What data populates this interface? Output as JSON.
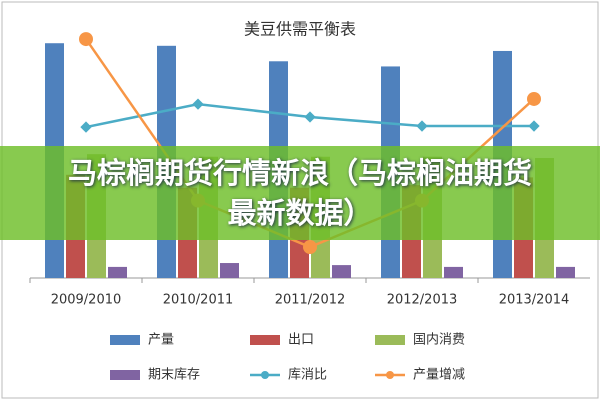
{
  "chart_data": {
    "type": "bar",
    "title": "美豆供需平衡表",
    "categories": [
      "2009/2010",
      "2010/2011",
      "2011/2012",
      "2012/2013",
      "2013/2014"
    ],
    "ylim": [
      0,
      10
    ],
    "series": [
      {
        "name": "产量",
        "color": "#4f81bd",
        "type": "bar",
        "values": [
          9.1,
          9.0,
          8.4,
          8.2,
          8.8
        ]
      },
      {
        "name": "出口",
        "color": "#c0504d",
        "type": "bar",
        "values": [
          4.0,
          3.5,
          3.5,
          3.6,
          3.9
        ]
      },
      {
        "name": "国内消费",
        "color": "#9bbb59",
        "type": "bar",
        "values": [
          4.8,
          4.7,
          4.7,
          4.7,
          4.65
        ]
      },
      {
        "name": "期末库存",
        "color": "#8064a2",
        "type": "bar",
        "values": [
          0.43,
          0.58,
          0.5,
          0.43,
          0.43
        ]
      },
      {
        "name": "库消比",
        "color": "#4bacc6",
        "type": "line",
        "values": [
          5.85,
          6.74,
          6.24,
          5.89,
          5.89
        ]
      },
      {
        "name": "产量增减",
        "color": "#f79646",
        "type": "line",
        "values": [
          9.26,
          3.0,
          1.2,
          3.0,
          6.94
        ]
      }
    ]
  },
  "banner": {
    "text": "马棕榈期货行情新浪（马棕榈油期货最新数据）"
  }
}
